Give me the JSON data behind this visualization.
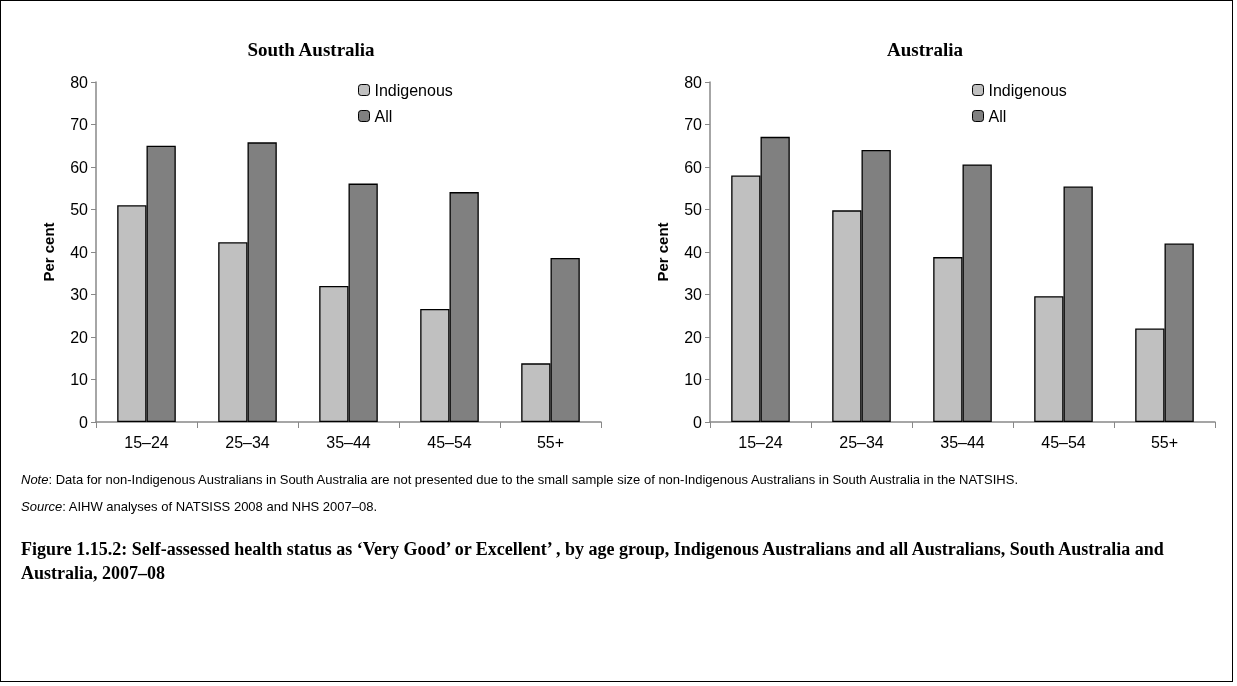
{
  "chart_data": [
    {
      "type": "bar",
      "title": "South Australia",
      "ylabel": "Per cent",
      "categories": [
        "15–24",
        "25–34",
        "35–44",
        "45–54",
        "55+"
      ],
      "series": [
        {
          "name": "Indigenous",
          "color": "#c0c0c0",
          "values": [
            51,
            42.3,
            32,
            26.6,
            13.8
          ]
        },
        {
          "name": "All",
          "color": "#808080",
          "values": [
            65,
            65.8,
            56.1,
            54.1,
            38.6
          ]
        }
      ],
      "ylim": [
        0,
        80
      ],
      "yticks": [
        0,
        10,
        20,
        30,
        40,
        50,
        60,
        70,
        80
      ],
      "grid": false,
      "legend": "top"
    },
    {
      "type": "bar",
      "title": "Australia",
      "ylabel": "Per cent",
      "categories": [
        "15–24",
        "25–34",
        "35–44",
        "45–54",
        "55+"
      ],
      "series": [
        {
          "name": "Indigenous",
          "color": "#c0c0c0",
          "values": [
            58,
            49.8,
            38.8,
            29.6,
            22
          ]
        },
        {
          "name": "All",
          "color": "#808080",
          "values": [
            67.1,
            64,
            60.6,
            55.4,
            42
          ]
        }
      ],
      "ylim": [
        0,
        80
      ],
      "yticks": [
        0,
        10,
        20,
        30,
        40,
        50,
        60,
        70,
        80
      ],
      "grid": false,
      "legend": "top",
      "annotations": [
        "Note: Data for non-Indigenous Australians in South Australia are not presented due to the small sample size of non-Indigenous Australians in South Australia in the NATSIHS.",
        "Source: AIHW analyses of NATSISS 2008 and NHS 2007–08.",
        "Figure 1.15.2: Self-assessed health status as ‘Very Good’ or Excellent’ , by age group, Indigenous Australians and all Australians, South Australia and Australia, 2007–08"
      ]
    }
  ]
}
